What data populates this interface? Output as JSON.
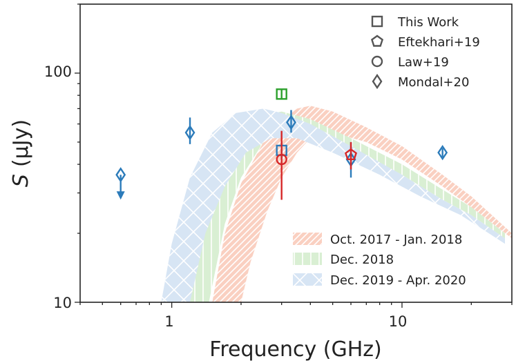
{
  "chart_data": {
    "type": "scatter",
    "xscale": "log",
    "yscale": "log",
    "xlim": [
      0.4,
      30
    ],
    "ylim": [
      10,
      200
    ],
    "xlabel": "Frequency (GHz)",
    "ylabel_symbol": "S",
    "ylabel_unit": "(µJy)",
    "x_tick_labels": [
      {
        "value": 1,
        "label": "1"
      },
      {
        "value": 10,
        "label": "10"
      }
    ],
    "y_tick_labels": [
      {
        "value": 10,
        "label": "10"
      },
      {
        "value": 100,
        "label": "100"
      }
    ],
    "colors": {
      "blue": "#2b7bba",
      "red": "#d62728",
      "green": "#2ca02c",
      "band_oct2017": "#fad0c1",
      "band_dec2018": "#d9efd3",
      "band_dec2019": "#d7e5f4"
    },
    "marker_legend": [
      {
        "marker": "square",
        "label": "This Work"
      },
      {
        "marker": "pentagon",
        "label": "Eftekhari+19"
      },
      {
        "marker": "circle",
        "label": "Law+19"
      },
      {
        "marker": "diamond",
        "label": "Mondal+20"
      }
    ],
    "band_legend": [
      {
        "key": "oct2017",
        "label": "Oct. 2017 - Jan. 2018",
        "hatch": "diagonal"
      },
      {
        "key": "dec2018",
        "label": "Dec. 2018",
        "hatch": "vertical"
      },
      {
        "key": "dec2019",
        "label": "Dec. 2019 - Apr. 2020",
        "hatch": "cross"
      }
    ],
    "bands": [
      {
        "key": "oct2017",
        "color_key": "band_oct2017",
        "hatch": "diagonal",
        "upper": [
          [
            1.5,
            10
          ],
          [
            1.7,
            20
          ],
          [
            2.0,
            33
          ],
          [
            2.5,
            50
          ],
          [
            3.0,
            62
          ],
          [
            3.5,
            70
          ],
          [
            4.0,
            72
          ],
          [
            5.0,
            68
          ],
          [
            7.0,
            58
          ],
          [
            10,
            48
          ],
          [
            15,
            36
          ],
          [
            20,
            29
          ],
          [
            30,
            20
          ]
        ],
        "lower": [
          [
            2.0,
            10
          ],
          [
            2.2,
            15
          ],
          [
            2.6,
            25
          ],
          [
            3.0,
            35
          ],
          [
            3.5,
            45
          ],
          [
            4.0,
            52
          ],
          [
            5.0,
            55
          ],
          [
            7.0,
            50
          ],
          [
            10,
            42
          ],
          [
            15,
            32
          ],
          [
            20,
            26
          ],
          [
            30,
            19
          ]
        ]
      },
      {
        "key": "dec2018",
        "color_key": "band_dec2018",
        "hatch": "vertical",
        "upper": [
          [
            1.2,
            10
          ],
          [
            1.4,
            22
          ],
          [
            1.7,
            40
          ],
          [
            2.2,
            58
          ],
          [
            2.6,
            66
          ],
          [
            3.0,
            68
          ],
          [
            4.0,
            63
          ],
          [
            6.0,
            52
          ],
          [
            10,
            40
          ],
          [
            15,
            31
          ],
          [
            20,
            26
          ],
          [
            28,
            20
          ]
        ],
        "lower": [
          [
            1.45,
            10
          ],
          [
            1.7,
            22
          ],
          [
            2.0,
            35
          ],
          [
            2.5,
            50
          ],
          [
            3.0,
            56
          ],
          [
            4.0,
            55
          ],
          [
            6.0,
            47
          ],
          [
            10,
            36
          ],
          [
            15,
            28
          ],
          [
            20,
            24
          ],
          [
            28,
            19
          ]
        ]
      },
      {
        "key": "dec2019",
        "color_key": "band_dec2019",
        "hatch": "cross",
        "upper": [
          [
            0.9,
            10
          ],
          [
            1.0,
            18
          ],
          [
            1.2,
            35
          ],
          [
            1.5,
            55
          ],
          [
            1.9,
            67
          ],
          [
            2.5,
            70
          ],
          [
            3.0,
            67
          ],
          [
            4.0,
            60
          ],
          [
            6.0,
            48
          ],
          [
            10,
            36
          ],
          [
            15,
            28
          ],
          [
            20,
            24
          ],
          [
            28,
            19
          ]
        ],
        "lower": [
          [
            1.2,
            10
          ],
          [
            1.4,
            20
          ],
          [
            1.7,
            32
          ],
          [
            2.1,
            45
          ],
          [
            2.7,
            52
          ],
          [
            3.5,
            52
          ],
          [
            5.0,
            45
          ],
          [
            8.0,
            36
          ],
          [
            12,
            29
          ],
          [
            18,
            24
          ],
          [
            28,
            18
          ]
        ]
      }
    ],
    "points": [
      {
        "source": "Mondal+20",
        "marker": "diamond",
        "color_key": "blue",
        "x": 0.6,
        "y": 36,
        "upper_limit": true
      },
      {
        "source": "Mondal+20",
        "marker": "diamond",
        "color_key": "blue",
        "x": 1.2,
        "y": 55,
        "yerr_low": 6,
        "yerr_high": 9
      },
      {
        "source": "Mondal+20",
        "marker": "diamond",
        "color_key": "blue",
        "x": 3.3,
        "y": 61,
        "yerr_low": 6,
        "yerr_high": 8
      },
      {
        "source": "Mondal+20",
        "marker": "diamond",
        "color_key": "blue",
        "x": 6.0,
        "y": 42,
        "yerr_low": 7,
        "yerr_high": 8
      },
      {
        "source": "Mondal+20",
        "marker": "diamond",
        "color_key": "blue",
        "x": 15.0,
        "y": 45,
        "yerr_low": 2,
        "yerr_high": 2
      },
      {
        "source": "This Work",
        "marker": "square",
        "color_key": "green",
        "x": 3.0,
        "y": 81,
        "yerr_low": 4,
        "yerr_high": 4
      },
      {
        "source": "This Work",
        "marker": "square",
        "color_key": "blue",
        "x": 3.0,
        "y": 46,
        "yerr_low": 4,
        "yerr_high": 4
      },
      {
        "source": "Law+19",
        "marker": "circle",
        "color_key": "red",
        "x": 3.0,
        "y": 42,
        "yerr_low": 14,
        "yerr_high": 14
      },
      {
        "source": "Eftekhari+19",
        "marker": "pentagon",
        "color_key": "red",
        "x": 6.0,
        "y": 44,
        "yerr_low": 6,
        "yerr_high": 6
      }
    ]
  }
}
